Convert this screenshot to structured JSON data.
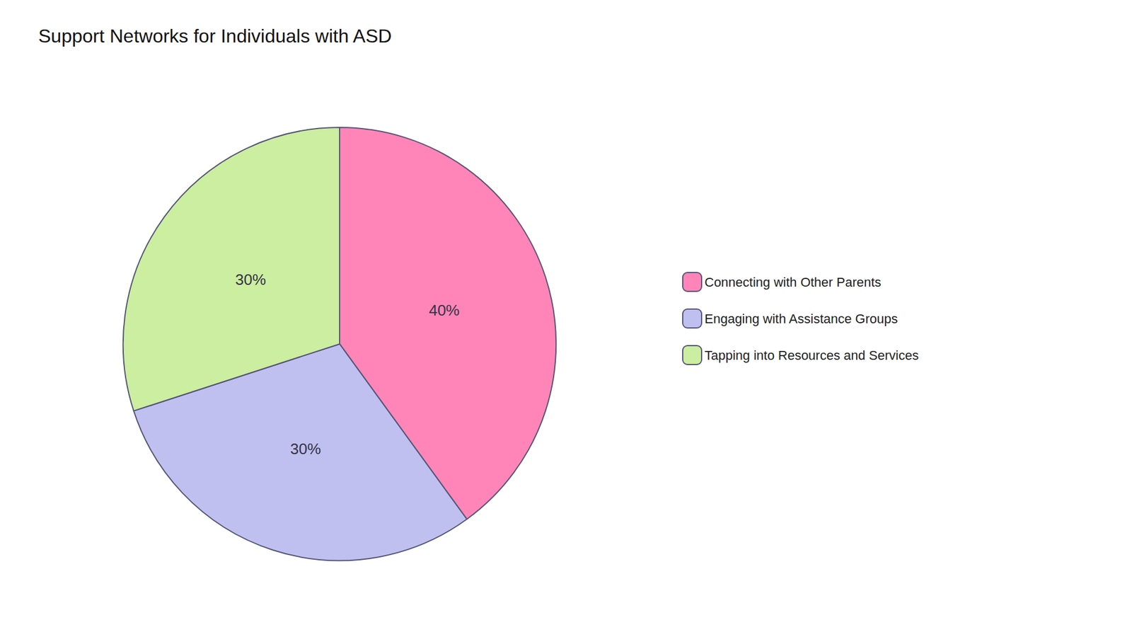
{
  "chart_data": {
    "type": "pie",
    "title": "Support Networks for Individuals with ASD",
    "categories": [
      "Connecting with Other Parents",
      "Engaging with Assistance Groups",
      "Tapping into Resources and Services"
    ],
    "values": [
      40,
      30,
      30
    ],
    "value_labels": [
      "40%",
      "30%",
      "30%"
    ],
    "colors": [
      "#FF85B8",
      "#C0C0F0",
      "#CCEEA0"
    ],
    "data_labels": true,
    "legend": "right"
  }
}
